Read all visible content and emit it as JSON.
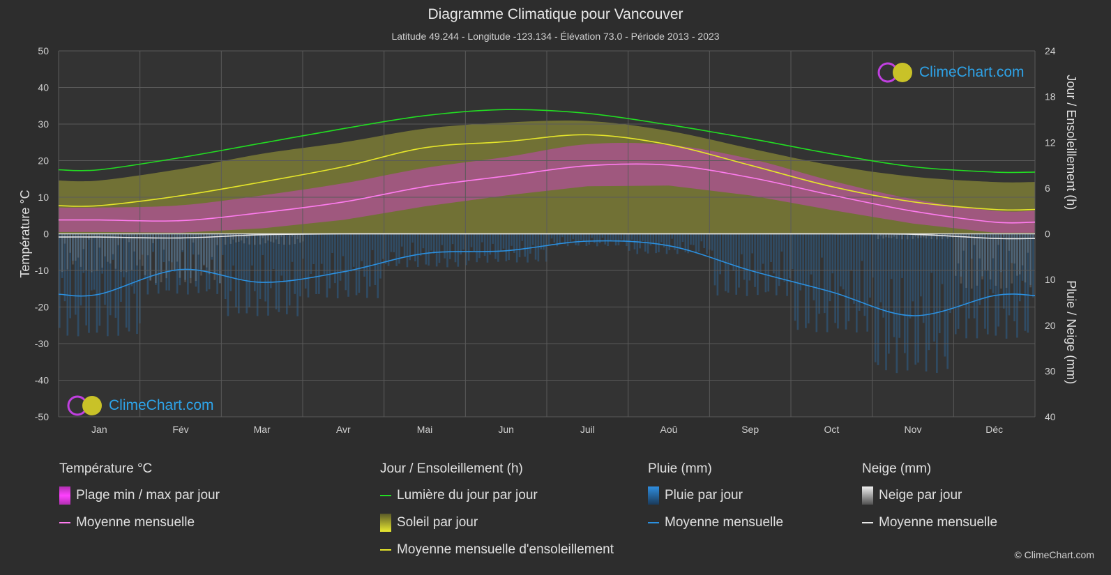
{
  "title": "Diagramme Climatique pour Vancouver",
  "subtitle": "Latitude 49.244 - Longitude -123.134 - Élévation 73.0 - Période 2013 - 2023",
  "brand": "ClimeChart.com",
  "copyright": "© ClimeChart.com",
  "colors": {
    "background": "#2d2d2d",
    "daylight": "#22dd22",
    "sunshine_band": "#c8c83a",
    "sunshine_avg": "#e6e62a",
    "temp_band": "#d83ad8",
    "temp_avg": "#ff7cf0",
    "rain": "#2a7cc4",
    "rain_avg": "#2b90e0",
    "snow": "#bdbdbd",
    "snow_avg": "#e8e8e8"
  },
  "chart_data": {
    "type": "line",
    "categories": [
      "Jan",
      "Fév",
      "Mar",
      "Avr",
      "Mai",
      "Jun",
      "Juil",
      "Aoû",
      "Sep",
      "Oct",
      "Nov",
      "Déc"
    ],
    "left_axis": {
      "label": "Température °C",
      "ticks": [
        "50",
        "40",
        "30",
        "20",
        "10",
        "0",
        "-10",
        "-20",
        "-30",
        "-40",
        "-50"
      ],
      "range": [
        -50,
        50
      ]
    },
    "right_axis_top": {
      "label": "Jour / Ensoleillement (h)",
      "ticks": [
        "24",
        "18",
        "12",
        "6",
        "0"
      ],
      "range": [
        0,
        24
      ]
    },
    "right_axis_bottom": {
      "label": "Pluie / Neige (mm)",
      "ticks": [
        "0",
        "10",
        "20",
        "30",
        "40"
      ],
      "range": [
        0,
        40
      ]
    },
    "series": [
      {
        "name": "Lumière du jour par jour",
        "unit": "h",
        "values": [
          8.4,
          10.0,
          11.9,
          13.8,
          15.5,
          16.3,
          15.8,
          14.3,
          12.5,
          10.5,
          8.8,
          8.1
        ]
      },
      {
        "name": "Moyenne mensuelle d'ensoleillement",
        "unit": "h",
        "values": [
          3.7,
          5.0,
          6.8,
          8.8,
          11.3,
          12.1,
          13.0,
          11.7,
          9.0,
          6.2,
          4.2,
          3.2
        ]
      },
      {
        "name": "Soleil par jour",
        "unit": "h",
        "values": [
          7.0,
          8.5,
          10.5,
          12.0,
          13.8,
          14.6,
          14.8,
          13.5,
          11.2,
          9.0,
          7.5,
          6.8
        ]
      },
      {
        "name": "Moyenne mensuelle",
        "group": "Température °C",
        "unit": "°C",
        "values": [
          3.8,
          3.6,
          5.8,
          8.7,
          12.9,
          15.8,
          18.6,
          18.8,
          15.4,
          10.6,
          6.2,
          3.2
        ]
      },
      {
        "name": "Moyenne mensuelle",
        "group": "Pluie (mm)",
        "unit": "mm",
        "values": [
          13.2,
          7.8,
          10.6,
          8.3,
          4.3,
          3.7,
          1.6,
          2.6,
          8.0,
          12.7,
          17.9,
          13.5
        ]
      },
      {
        "name": "Moyenne mensuelle",
        "group": "Neige (mm)",
        "unit": "mm",
        "values": [
          0.7,
          0.9,
          0.2,
          0.0,
          0.0,
          0.0,
          0.0,
          0.0,
          0.0,
          0.0,
          0.1,
          1.0
        ]
      }
    ],
    "temp_range": {
      "min": [
        0.5,
        0.3,
        1.5,
        3.8,
        7.5,
        10.5,
        13.0,
        13.2,
        10.5,
        6.5,
        2.8,
        0.3
      ],
      "max": [
        7.2,
        7.8,
        10.5,
        13.8,
        18.0,
        21.0,
        24.5,
        24.3,
        20.5,
        14.5,
        9.5,
        6.3
      ]
    },
    "grid": true
  },
  "legend": {
    "temperature": {
      "title": "Température °C",
      "items": [
        "Plage min / max par jour",
        "Moyenne mensuelle"
      ]
    },
    "sun": {
      "title": "Jour / Ensoleillement (h)",
      "items": [
        "Lumière du jour par jour",
        "Soleil par jour",
        "Moyenne mensuelle d'ensoleillement"
      ]
    },
    "rain": {
      "title": "Pluie (mm)",
      "items": [
        "Pluie par jour",
        "Moyenne mensuelle"
      ]
    },
    "snow": {
      "title": "Neige (mm)",
      "items": [
        "Neige par jour",
        "Moyenne mensuelle"
      ]
    }
  }
}
